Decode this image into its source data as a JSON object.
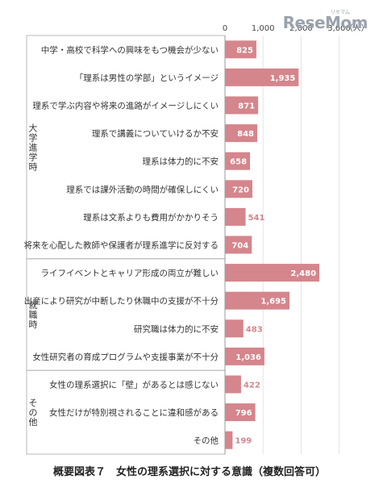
{
  "watermark": {
    "text": "ReseMom",
    "small": "リセマム"
  },
  "caption": "概要図表７　女性の理系選択に対する意識（複数回答可）",
  "chart_data": {
    "type": "bar",
    "orientation": "horizontal",
    "x_ticks": [
      "0",
      "1,000",
      "2,000",
      "3,000"
    ],
    "x_unit": "（人）",
    "xlim": [
      0,
      3000
    ],
    "grid": true,
    "bar_color": "#d4868c",
    "label_color_in_bar": "#ffffff",
    "label_color_outside": "#d4868c",
    "groups": [
      {
        "name": "大学進学時",
        "start": 0,
        "end": 8
      },
      {
        "name": "就職時",
        "start": 8,
        "end": 12
      },
      {
        "name": "その他",
        "start": 12,
        "end": 15
      }
    ],
    "categories": [
      "中学・高校で科学への興味をもつ機会が少ない",
      "「理系は男性の学部」というイメージ",
      "理系で学ぶ内容や将来の進路がイメージしにくい",
      "理系で講義についていけるか不安",
      "理系は体力的に不安",
      "理系では課外活動の時間が確保しにくい",
      "理系は文系よりも費用がかかりそう",
      "将来を心配した教師や保護者が理系進学に反対する",
      "ライフイベントとキャリア形成の両立が難しい",
      "出産により研究が中断したり休職中の支援が不十分",
      "研究職は体力的に不安",
      "女性研究者の育成プログラムや支援事業が不十分",
      "女性の理系選択に「壁」があるとは感じない",
      "女性だけが特別視されることに違和感がある",
      "その他"
    ],
    "values": [
      825,
      1935,
      871,
      848,
      658,
      720,
      541,
      704,
      2480,
      1695,
      483,
      1036,
      422,
      796,
      199
    ],
    "value_labels": [
      "825",
      "1,935",
      "871",
      "848",
      "658",
      "720",
      "541",
      "704",
      "2,480",
      "1,695",
      "483",
      "1,036",
      "422",
      "796",
      "199"
    ]
  }
}
